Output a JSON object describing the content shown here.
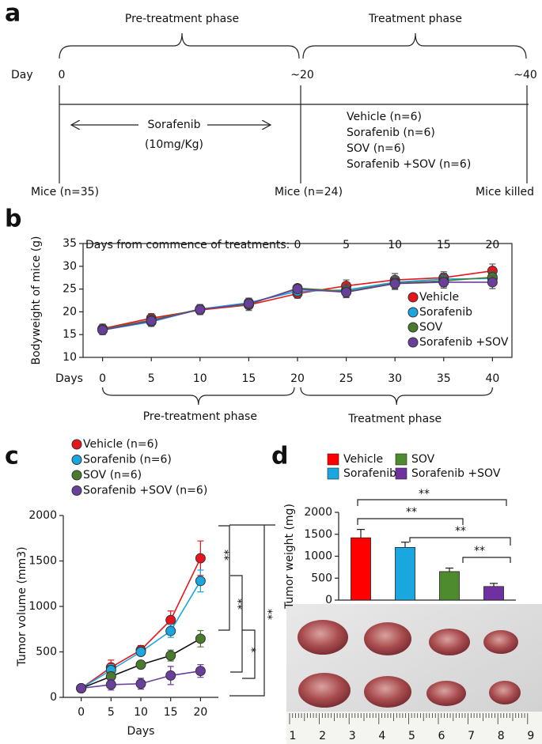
{
  "panel_labels": [
    "a",
    "b",
    "c",
    "d"
  ],
  "timeline": {
    "phases": [
      "Pre-treatment phase",
      "Treatment phase"
    ],
    "day_label": "Day",
    "days": [
      "0",
      "~20",
      "~40"
    ],
    "drug": "Sorafenib",
    "dose": "(10mg/Kg)",
    "groups": [
      "Vehicle (n=6)",
      "Sorafenib (n=6)",
      "SOV (n=6)",
      "Sorafenib +SOV (n=6)"
    ],
    "mice": [
      "Mice (n=35)",
      "Mice (n=24)",
      "Mice killed"
    ]
  },
  "chart_data": [
    {
      "type": "line",
      "ylabel": "Bodyweight of mice (g)",
      "xlabel": "Days",
      "x": [
        0,
        5,
        10,
        15,
        20,
        25,
        30,
        35,
        40
      ],
      "xlim": [
        -2,
        42
      ],
      "xticks": [
        0,
        5,
        10,
        15,
        20,
        25,
        30,
        35,
        40
      ],
      "ylim": [
        10,
        35
      ],
      "yticks": [
        10,
        15,
        20,
        25,
        30,
        35
      ],
      "x2label": "Days from commence of treatments:",
      "x2lim": [
        -22,
        22
      ],
      "x2ticks": [
        0,
        5,
        10,
        15,
        20
      ],
      "phases": [
        "Pre-treatment phase",
        "Treatment phase"
      ],
      "legend": "lower right",
      "series": [
        {
          "name": "Vehicle",
          "color": "#e8161b",
          "values": [
            16.3,
            18.6,
            20.4,
            21.5,
            24.0,
            25.7,
            27.0,
            27.5,
            29.0
          ],
          "errors": [
            1.0,
            1.0,
            1.0,
            1.2,
            1.0,
            1.3,
            1.4,
            1.3,
            1.5
          ]
        },
        {
          "name": "Sorafenib",
          "color": "#1aa7e0",
          "values": [
            16.0,
            17.8,
            20.6,
            22.0,
            24.5,
            24.8,
            26.5,
            27.2,
            27.3
          ],
          "errors": [
            1.0,
            1.0,
            1.0,
            1.0,
            1.0,
            1.2,
            1.3,
            1.3,
            1.4
          ]
        },
        {
          "name": "SOV",
          "color": "#4a7a2c",
          "values": [
            16.2,
            18.2,
            20.6,
            21.6,
            25.2,
            24.5,
            26.3,
            26.8,
            27.6
          ],
          "errors": [
            1.0,
            1.0,
            1.0,
            1.0,
            0.8,
            1.2,
            1.3,
            1.3,
            1.4
          ]
        },
        {
          "name": "Sorafenib +SOV",
          "color": "#6a3f9c",
          "values": [
            16.0,
            18.0,
            20.5,
            21.8,
            25.0,
            24.3,
            26.2,
            26.5,
            26.5
          ],
          "errors": [
            1.0,
            1.0,
            1.0,
            1.0,
            0.8,
            1.2,
            1.3,
            1.3,
            1.4
          ]
        }
      ]
    },
    {
      "type": "line",
      "ylabel": "Tumor volume (mm3)",
      "xlabel": "Days",
      "x": [
        0,
        5,
        10,
        15,
        20
      ],
      "xlim": [
        -3,
        23
      ],
      "xticks": [
        0,
        5,
        10,
        15,
        20
      ],
      "ylim": [
        0,
        2000
      ],
      "yticks": [
        0,
        500,
        1000,
        1500,
        2000
      ],
      "legend": "upper left",
      "annotations": [
        "**",
        "**",
        "*",
        "**"
      ],
      "series": [
        {
          "name": "Vehicle (n=6)",
          "color": "#e8161b",
          "values": [
            100,
            330,
            520,
            850,
            1530
          ],
          "errors": [
            0,
            80,
            50,
            100,
            190
          ]
        },
        {
          "name": "Sorafenib (n=6)",
          "color": "#1aa7e0",
          "values": [
            100,
            300,
            500,
            730,
            1280
          ],
          "errors": [
            0,
            60,
            40,
            70,
            120
          ]
        },
        {
          "name": "SOV (n=6)",
          "color": "#4a7a2c",
          "values": [
            100,
            230,
            360,
            460,
            645
          ],
          "errors": [
            0,
            50,
            40,
            60,
            90
          ]
        },
        {
          "name": "Sorafenib +SOV (n=6)",
          "color": "#6a3f9c",
          "values": [
            100,
            140,
            150,
            240,
            290
          ],
          "errors": [
            0,
            60,
            60,
            100,
            70
          ]
        }
      ]
    },
    {
      "type": "bar",
      "ylabel": "Tumor weight (mg)",
      "ylim": [
        0,
        2000
      ],
      "yticks": [
        0,
        500,
        1000,
        1500,
        2000
      ],
      "legend": "top",
      "annotations": [
        "**",
        "**",
        "**",
        "**"
      ],
      "series": [
        {
          "name": "Vehicle",
          "color": "#ff0000",
          "values": [
            1420
          ],
          "errors": [
            190
          ]
        },
        {
          "name": "Sorafenib",
          "color": "#1aa7e0",
          "values": [
            1200
          ],
          "errors": [
            120
          ]
        },
        {
          "name": "SOV",
          "color": "#4e8a2e",
          "values": [
            650
          ],
          "errors": [
            80
          ]
        },
        {
          "name": "Sorafenib +SOV",
          "color": "#7030a0",
          "values": [
            310
          ],
          "errors": [
            70
          ]
        }
      ]
    }
  ],
  "photo": {
    "ruler_labels": [
      1,
      2,
      3,
      4,
      5,
      6,
      7,
      8,
      9
    ]
  }
}
